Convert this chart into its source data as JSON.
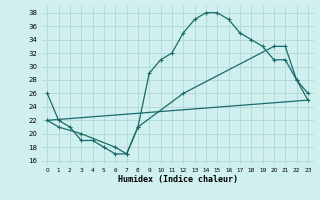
{
  "xlabel": "Humidex (Indice chaleur)",
  "background_color": "#cff0ee",
  "grid_color": "#b0d8d4",
  "line_color": "#1a6b6b",
  "xlim": [
    -0.5,
    23.5
  ],
  "ylim": [
    15.5,
    39
  ],
  "yticks": [
    16,
    18,
    20,
    22,
    24,
    26,
    28,
    30,
    32,
    34,
    36,
    38
  ],
  "xticks": [
    0,
    1,
    2,
    3,
    4,
    5,
    6,
    7,
    8,
    9,
    10,
    11,
    12,
    13,
    14,
    15,
    16,
    17,
    18,
    19,
    20,
    21,
    22,
    23
  ],
  "line1_x": [
    0,
    1,
    2,
    3,
    4,
    5,
    6,
    7,
    8,
    9,
    10,
    11,
    12,
    13,
    14,
    15,
    16,
    17,
    18,
    19,
    20,
    21,
    22,
    23
  ],
  "line1_y": [
    26,
    22,
    21,
    19,
    19,
    18,
    17,
    17,
    21,
    29,
    31,
    32,
    35,
    37,
    38,
    38,
    37,
    35,
    34,
    33,
    31,
    31,
    28,
    26
  ],
  "line2_x": [
    0,
    1,
    3,
    6,
    7,
    8,
    12,
    20,
    21,
    22,
    23
  ],
  "line2_y": [
    22,
    21,
    20,
    18,
    17,
    21,
    26,
    33,
    33,
    28,
    25
  ],
  "line3_x": [
    0,
    23
  ],
  "line3_y": [
    22,
    25
  ]
}
